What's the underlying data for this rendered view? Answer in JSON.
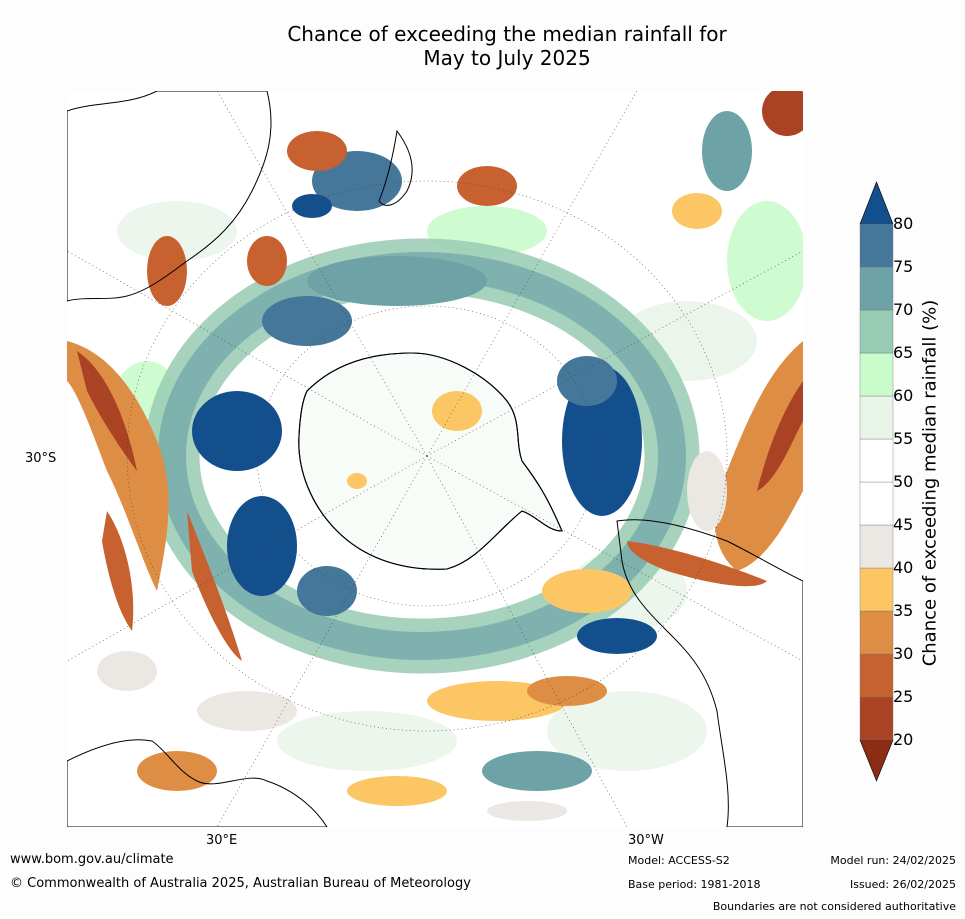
{
  "title_line1": "Chance of exceeding the median rainfall for",
  "title_line2": "May to July 2025",
  "map": {
    "lat_label": "30°S",
    "lon_labels": [
      "30°E",
      "30°W"
    ]
  },
  "colorbar": {
    "label": "Chance of exceeding median rainfall (%)",
    "ticks": [
      "20",
      "25",
      "30",
      "35",
      "40",
      "45",
      "50",
      "55",
      "60",
      "65",
      "70",
      "75",
      "80"
    ],
    "colors": [
      "#8b2d14",
      "#a94323",
      "#c7612f",
      "#de8e44",
      "#fdc665",
      "#ebe8e3",
      "#ffffff",
      "#ffffff",
      "#eaf5ea",
      "#c9fbcb",
      "#98cbb3",
      "#6da3a6",
      "#45779b",
      "#144f8d"
    ]
  },
  "footer": {
    "url": "www.bom.gov.au/climate",
    "copyright": "© Commonwealth of Australia 2025, Australian Bureau of Meteorology",
    "model": "Model: ACCESS-S2",
    "base_period": "Base period: 1981-2018",
    "model_run": "Model run: 24/02/2025",
    "issued": "Issued: 26/02/2025",
    "disclaimer": "Boundaries are not considered authoritative"
  }
}
